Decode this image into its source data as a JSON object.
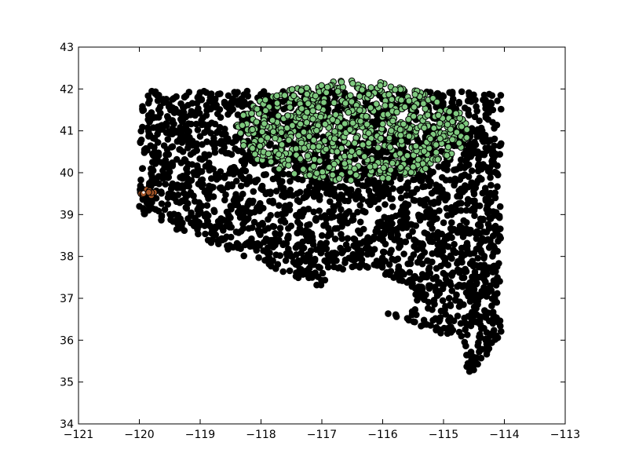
{
  "chart_data": {
    "type": "scatter",
    "title": "",
    "xlabel": "",
    "ylabel": "",
    "xlim": [
      -121,
      -113
    ],
    "ylim": [
      34,
      43
    ],
    "xticks": [
      -121,
      -120,
      -119,
      -118,
      -117,
      -116,
      -115,
      -114,
      -113
    ],
    "yticks": [
      34,
      35,
      36,
      37,
      38,
      39,
      40,
      41,
      42,
      43
    ],
    "xtick_labels": [
      "−121",
      "−120",
      "−119",
      "−118",
      "−117",
      "−116",
      "−115",
      "−114",
      "−113"
    ],
    "ytick_labels": [
      "34",
      "35",
      "36",
      "37",
      "38",
      "39",
      "40",
      "41",
      "42",
      "43"
    ],
    "grid": false,
    "legend": "none",
    "series": [
      {
        "color": "#000000",
        "region_outline": [
          [
            -120.0,
            41.95
          ],
          [
            -114.05,
            41.95
          ],
          [
            -114.05,
            36.1
          ],
          [
            -114.6,
            35.05
          ],
          [
            -114.65,
            35.9
          ],
          [
            -120.0,
            39.0
          ]
        ],
        "gaps": [
          [
            [
              -116.95,
              37.6
            ],
            [
              -116.4,
              37.75
            ],
            [
              -115.75,
              37.45
            ],
            [
              -115.4,
              37.0
            ],
            [
              -115.7,
              36.6
            ],
            [
              -116.3,
              36.75
            ],
            [
              -116.9,
              37.2
            ]
          ],
          [
            [
              -118.85,
              40.35
            ],
            [
              -118.5,
              40.45
            ],
            [
              -118.35,
              40.2
            ],
            [
              -118.75,
              40.1
            ]
          ],
          [
            [
              -118.7,
              41.3
            ],
            [
              -118.4,
              41.35
            ],
            [
              -118.45,
              41.05
            ],
            [
              -118.75,
              41.1
            ]
          ],
          [
            [
              -114.95,
              39.55
            ],
            [
              -114.75,
              39.6
            ],
            [
              -114.8,
              39.35
            ]
          ],
          [
            [
              -116.75,
              38.7
            ],
            [
              -116.45,
              38.75
            ],
            [
              -116.5,
              38.5
            ]
          ]
        ]
      },
      {
        "color": "#7fc97f",
        "cluster_center": [
          -116.5,
          41.0
        ],
        "cluster_radius": [
          1.9,
          1.2
        ]
      },
      {
        "color": "#a65628",
        "cluster_center": [
          -119.87,
          39.52
        ],
        "cluster_radius": [
          0.12,
          0.08
        ]
      }
    ]
  }
}
